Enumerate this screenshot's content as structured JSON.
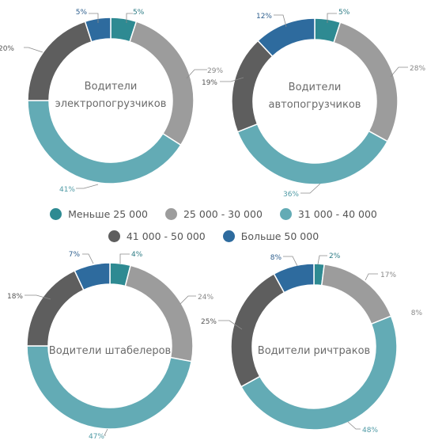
{
  "colors": [
    "#2e8a92",
    "#9c9c9c",
    "#63abb5",
    "#5e5e5e",
    "#2e6b9e"
  ],
  "legend": {
    "row1": [
      "Меньше 25 000",
      "25 000 - 30 000",
      "31 000 - 40 000"
    ],
    "row2": [
      "41 000 - 50 000",
      "Больше 50 000"
    ]
  },
  "chart_data": [
    {
      "type": "pie",
      "title_lines": [
        "Водители",
        "электропогрузчиков"
      ],
      "categories": [
        "Меньше 25 000",
        "25 000 - 30 000",
        "31 000 - 40 000",
        "41 000 - 50 000",
        "Больше 50 000"
      ],
      "values": [
        5,
        29,
        41,
        20,
        5
      ],
      "labels": [
        "5%",
        "29%",
        "41%",
        "20%",
        "5%"
      ]
    },
    {
      "type": "pie",
      "title_lines": [
        "Водители",
        "автопогрузчиков"
      ],
      "categories": [
        "Меньше 25 000",
        "25 000 - 30 000",
        "31 000 - 40 000",
        "41 000 - 50 000",
        "Больше 50 000"
      ],
      "values": [
        5,
        28,
        36,
        19,
        12
      ],
      "labels": [
        "5%",
        "28%",
        "36%",
        "19%",
        "12%"
      ]
    },
    {
      "type": "pie",
      "title_lines": [
        "Водители штабелеров"
      ],
      "categories": [
        "Меньше 25 000",
        "25 000 - 30 000",
        "31 000 - 40 000",
        "41 000 - 50 000",
        "Больше 50 000"
      ],
      "values": [
        4,
        24,
        47,
        18,
        7
      ],
      "labels": [
        "4%",
        "24%",
        "47%",
        "18%",
        "7%"
      ]
    },
    {
      "type": "pie",
      "title_lines": [
        "Водители ричтраков"
      ],
      "categories": [
        "Меньше 25 000",
        "25 000 - 30 000",
        "31 000 - 40 000",
        "41 000 - 50 000",
        "Больше 50 000"
      ],
      "values": [
        2,
        17,
        48,
        25,
        8
      ],
      "labels": [
        "2%",
        "17%",
        "48%",
        "25%",
        "8%"
      ],
      "extra_label": "8%"
    }
  ]
}
